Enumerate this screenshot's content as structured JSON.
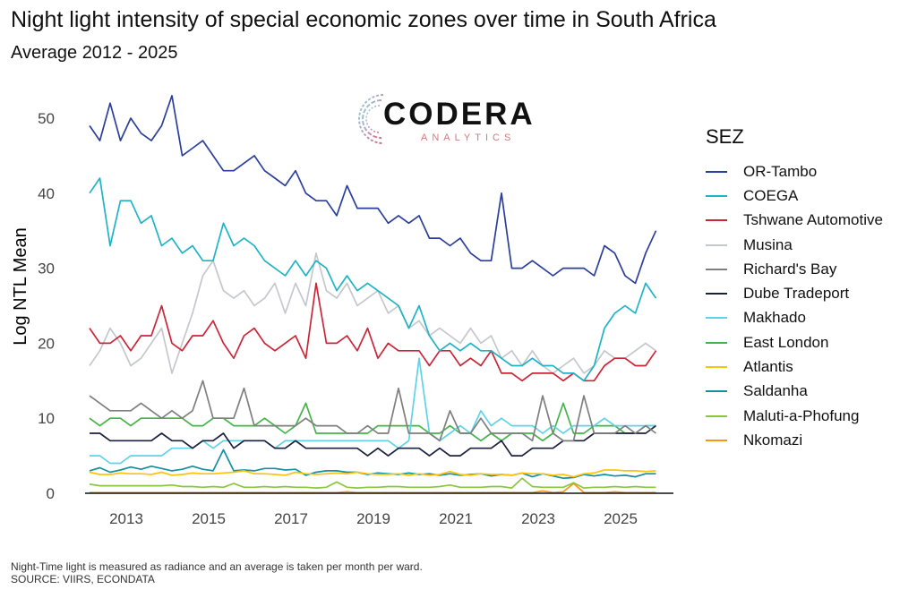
{
  "title": "Night light intensity of special economic zones over time in South Africa",
  "subtitle": "Average 2012 - 2025",
  "logo": {
    "main": "CODERA",
    "sub": "ANALYTICS"
  },
  "footer": {
    "note": "Night-Time light is measured as radiance and an average is taken per month per ward.",
    "source": "SOURCE: VIIRS, ECONDATA"
  },
  "chart_data": {
    "type": "line",
    "title": "Night light intensity of special economic zones over time in South Africa",
    "xlabel": "",
    "ylabel": "Log NTL Mean",
    "xlim": [
      2012,
      2025.75
    ],
    "ylim": [
      0,
      54
    ],
    "x_start": 2012,
    "x_step": 0.25,
    "xticks": [
      2013,
      2015,
      2017,
      2019,
      2021,
      2023,
      2025
    ],
    "yticks": [
      0,
      10,
      20,
      30,
      40,
      50
    ],
    "grid": false,
    "legend_title": "SEZ",
    "legend_position": "right",
    "series": [
      {
        "name": "OR-Tambo",
        "color": "#2b3f9a",
        "values": [
          49,
          47,
          52,
          47,
          50,
          48,
          47,
          49,
          53,
          45,
          46,
          47,
          45,
          43,
          43,
          44,
          45,
          43,
          42,
          41,
          43,
          40,
          39,
          39,
          37,
          41,
          38,
          38,
          38,
          36,
          37,
          36,
          37,
          34,
          34,
          33,
          34,
          32,
          31,
          31,
          40,
          30,
          30,
          31,
          30,
          29,
          30,
          30,
          30,
          29,
          33,
          32,
          29,
          28,
          32,
          35
        ]
      },
      {
        "name": "COEGA",
        "color": "#1fb3c4",
        "values": [
          40,
          42,
          33,
          39,
          39,
          36,
          37,
          33,
          34,
          32,
          33,
          31,
          31,
          36,
          33,
          34,
          33,
          31,
          30,
          29,
          31,
          29,
          31,
          30,
          27,
          29,
          27,
          28,
          27,
          26,
          25,
          22,
          25,
          21,
          19,
          20,
          19,
          20,
          19,
          19,
          18,
          17,
          17,
          18,
          17,
          17,
          16,
          16,
          15,
          17,
          22,
          24,
          25,
          24,
          28,
          26
        ]
      },
      {
        "name": "Tshwane Automotive",
        "color": "#cc2538",
        "values": [
          22,
          20,
          20,
          21,
          19,
          21,
          21,
          25,
          20,
          19,
          21,
          21,
          23,
          20,
          18,
          21,
          22,
          20,
          19,
          20,
          21,
          18,
          28,
          20,
          20,
          21,
          19,
          22,
          18,
          20,
          19,
          19,
          19,
          17,
          19,
          19,
          17,
          18,
          17,
          19,
          16,
          16,
          15,
          16,
          16,
          16,
          15,
          16,
          15,
          15,
          17,
          18,
          18,
          17,
          17,
          19
        ]
      },
      {
        "name": "Musina",
        "color": "#c4c7cc",
        "values": [
          17,
          19,
          22,
          20,
          17,
          18,
          20,
          22,
          16,
          20,
          24,
          29,
          31,
          27,
          26,
          27,
          25,
          26,
          28,
          24,
          28,
          25,
          32,
          27,
          26,
          28,
          25,
          26,
          27,
          24,
          25,
          22,
          23,
          21,
          22,
          21,
          20,
          22,
          20,
          21,
          18,
          19,
          17,
          19,
          17,
          16,
          17,
          18,
          16,
          17,
          19,
          18,
          18,
          19,
          20,
          19
        ]
      },
      {
        "name": "Richard's Bay",
        "color": "#7f7f7f",
        "values": [
          13,
          12,
          11,
          11,
          11,
          12,
          11,
          10,
          11,
          10,
          11,
          15,
          10,
          10,
          10,
          14,
          9,
          9,
          9,
          9,
          9,
          10,
          9,
          9,
          9,
          8,
          8,
          9,
          8,
          8,
          14,
          8,
          8,
          8,
          7,
          11,
          8,
          8,
          10,
          8,
          8,
          8,
          8,
          7,
          13,
          8,
          7,
          7,
          13,
          8,
          8,
          8,
          9,
          8,
          9,
          8
        ]
      },
      {
        "name": "Dube Tradeport",
        "color": "#1c2140",
        "values": [
          8,
          8,
          7,
          7,
          7,
          7,
          7,
          8,
          7,
          7,
          6,
          7,
          7,
          8,
          6,
          7,
          7,
          7,
          6,
          6,
          7,
          6,
          6,
          6,
          6,
          6,
          6,
          5,
          6,
          5,
          6,
          6,
          6,
          5,
          6,
          5,
          5,
          6,
          6,
          6,
          7,
          5,
          5,
          6,
          6,
          6,
          7,
          7,
          7,
          8,
          8,
          8,
          8,
          8,
          8,
          9
        ]
      },
      {
        "name": "Makhado",
        "color": "#5fd3e6",
        "values": [
          5,
          5,
          4,
          4,
          5,
          5,
          5,
          5,
          6,
          6,
          6,
          7,
          6,
          7,
          7,
          7,
          7,
          7,
          6,
          7,
          7,
          7,
          7,
          7,
          7,
          7,
          7,
          7,
          7,
          7,
          6,
          7,
          18,
          8,
          7,
          8,
          9,
          8,
          11,
          9,
          10,
          9,
          9,
          9,
          8,
          9,
          8,
          9,
          9,
          9,
          10,
          9,
          9,
          9,
          9,
          9
        ]
      },
      {
        "name": "East London",
        "color": "#45b449",
        "values": [
          10,
          9,
          10,
          10,
          9,
          10,
          10,
          10,
          10,
          10,
          9,
          9,
          10,
          10,
          9,
          9,
          9,
          10,
          9,
          8,
          9,
          12,
          8,
          8,
          8,
          8,
          8,
          8,
          9,
          9,
          9,
          9,
          9,
          8,
          8,
          9,
          8,
          8,
          7,
          8,
          7,
          8,
          8,
          8,
          7,
          8,
          12,
          8,
          8,
          9,
          9,
          9,
          8,
          8,
          9,
          9
        ]
      },
      {
        "name": "Atlantis",
        "color": "#ffc20e",
        "values": [
          2.8,
          2.5,
          2.5,
          2.7,
          2.6,
          2.6,
          2.5,
          2.8,
          2.4,
          2.5,
          2.7,
          2.6,
          2.6,
          2.7,
          2.8,
          3,
          2.6,
          2.6,
          2.5,
          2.4,
          2.8,
          2.6,
          2.5,
          2.6,
          2.7,
          2.6,
          2.8,
          2.6,
          2.5,
          2.5,
          2.6,
          2.4,
          2.6,
          2.4,
          2.5,
          2.9,
          2.5,
          2.4,
          2.6,
          2.5,
          2.5,
          2.4,
          2.7,
          2.6,
          2.6,
          2.4,
          2.5,
          2.2,
          2.6,
          2.7,
          3.1,
          3.1,
          3,
          3,
          2.9,
          3
        ]
      },
      {
        "name": "Saldanha",
        "color": "#14909e",
        "values": [
          3,
          3.4,
          2.8,
          3.1,
          3.5,
          3.2,
          3.6,
          3.3,
          3,
          3.2,
          3.6,
          3.2,
          3,
          5.8,
          3,
          3.1,
          3,
          3.3,
          3.3,
          3.1,
          3.2,
          2.4,
          2.8,
          3,
          3,
          2.8,
          2.8,
          2.5,
          2.7,
          2.6,
          2.5,
          2.7,
          2.5,
          2.6,
          2.4,
          2.6,
          2.4,
          2.5,
          2.6,
          2.3,
          2.5,
          2.4,
          2.7,
          2.2,
          2.6,
          2.3,
          2,
          2.1,
          2.5,
          2.3,
          2.5,
          2.3,
          2.4,
          2.2,
          2.6,
          2.6
        ]
      },
      {
        "name": "Maluti-a-Phofung",
        "color": "#8cc63f",
        "values": [
          1.2,
          1,
          1,
          1,
          1,
          1,
          1,
          1,
          1.1,
          0.9,
          0.9,
          0.8,
          0.9,
          0.8,
          1.3,
          0.8,
          0.8,
          0.9,
          0.8,
          0.9,
          0.8,
          0.8,
          0.7,
          0.8,
          1.5,
          0.8,
          0.7,
          0.8,
          0.8,
          0.9,
          0.9,
          0.8,
          0.8,
          0.8,
          0.9,
          1.1,
          0.8,
          0.8,
          0.8,
          0.9,
          0.9,
          0.7,
          2,
          0.9,
          0.8,
          0.8,
          0.8,
          1.4,
          0.7,
          0.8,
          0.8,
          0.9,
          0.8,
          0.9,
          0.8,
          0.8
        ]
      },
      {
        "name": "Nkomazi",
        "color": "#f7941d",
        "values": [
          0.1,
          0.1,
          0.1,
          0.1,
          0.1,
          0.1,
          0.1,
          0.1,
          0.1,
          0.1,
          0.1,
          0.1,
          0.1,
          0.1,
          0.1,
          0.1,
          0.1,
          0.1,
          0.1,
          0.1,
          0.1,
          0.1,
          0.1,
          0.1,
          0.1,
          0.2,
          0.1,
          0.1,
          0.1,
          0.1,
          0.1,
          0.1,
          0.1,
          0.1,
          0.1,
          0.1,
          0.1,
          0.1,
          0.1,
          0.1,
          0.1,
          0.1,
          0.1,
          0.1,
          0.3,
          0.1,
          0.2,
          1.3,
          0.1,
          0.1,
          0.1,
          0.2,
          0.1,
          0.1,
          0.1,
          0.1
        ]
      }
    ]
  }
}
